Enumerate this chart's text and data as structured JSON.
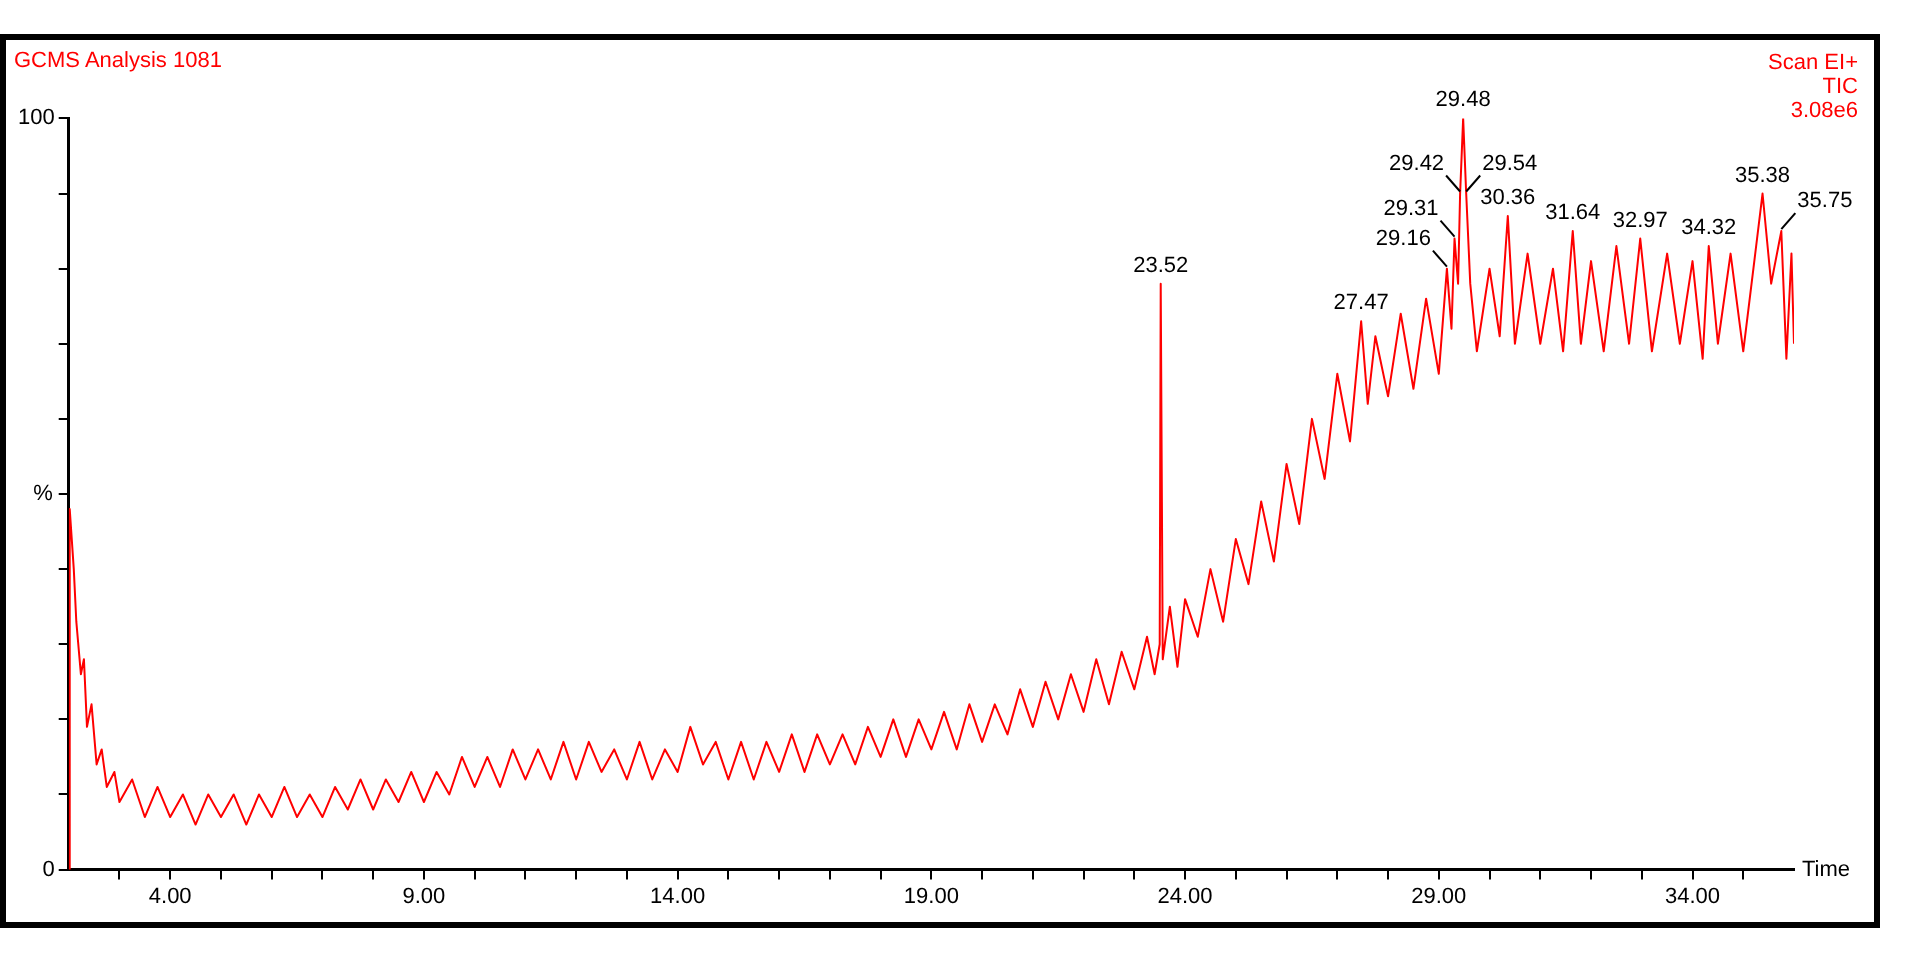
{
  "chart_data": {
    "type": "line",
    "title": "GCMS Analysis 1081",
    "xlabel": "Time",
    "ylabel": "%",
    "annotations": [
      "Scan EI+",
      "TIC",
      "3.08e6",
      {
        "text": "23.52",
        "x": 23.52,
        "y": 78
      },
      {
        "text": "27.47",
        "x": 27.47,
        "y": 73
      },
      {
        "text": "29.48",
        "x": 29.48,
        "y": 100
      },
      {
        "text": "29.16",
        "x": 29.16,
        "y": 80
      },
      {
        "text": "29.31",
        "x": 29.31,
        "y": 84
      },
      {
        "text": "29.42",
        "x": 29.42,
        "y": 90
      },
      {
        "text": "29.54",
        "x": 29.54,
        "y": 90
      },
      {
        "text": "30.36",
        "x": 30.36,
        "y": 87
      },
      {
        "text": "31.64",
        "x": 31.64,
        "y": 85
      },
      {
        "text": "32.97",
        "x": 32.97,
        "y": 84
      },
      {
        "text": "34.32",
        "x": 34.32,
        "y": 83
      },
      {
        "text": "35.38",
        "x": 35.38,
        "y": 90
      },
      {
        "text": "35.75",
        "x": 35.75,
        "y": 85
      }
    ],
    "xlim": [
      2,
      36
    ],
    "xticks": [
      {
        "value": 3,
        "label": null
      },
      {
        "value": 4,
        "label": "4.00"
      },
      {
        "value": 5,
        "label": null
      },
      {
        "value": 6,
        "label": null
      },
      {
        "value": 7,
        "label": null
      },
      {
        "value": 8,
        "label": null
      },
      {
        "value": 9,
        "label": "9.00"
      },
      {
        "value": 10,
        "label": null
      },
      {
        "value": 11,
        "label": null
      },
      {
        "value": 12,
        "label": null
      },
      {
        "value": 13,
        "label": null
      },
      {
        "value": 14,
        "label": "14.00"
      },
      {
        "value": 15,
        "label": null
      },
      {
        "value": 16,
        "label": null
      },
      {
        "value": 17,
        "label": null
      },
      {
        "value": 18,
        "label": null
      },
      {
        "value": 19,
        "label": "19.00"
      },
      {
        "value": 20,
        "label": null
      },
      {
        "value": 21,
        "label": null
      },
      {
        "value": 22,
        "label": null
      },
      {
        "value": 23,
        "label": null
      },
      {
        "value": 24,
        "label": "24.00"
      },
      {
        "value": 25,
        "label": null
      },
      {
        "value": 26,
        "label": null
      },
      {
        "value": 27,
        "label": null
      },
      {
        "value": 28,
        "label": null
      },
      {
        "value": 29,
        "label": "29.00"
      },
      {
        "value": 30,
        "label": null
      },
      {
        "value": 31,
        "label": null
      },
      {
        "value": 32,
        "label": null
      },
      {
        "value": 33,
        "label": null
      },
      {
        "value": 34,
        "label": "34.00"
      },
      {
        "value": 35,
        "label": null
      }
    ],
    "ylim": [
      0,
      100
    ],
    "yticks": [
      0,
      {
        "value": 10,
        "label": null
      },
      {
        "value": 20,
        "label": null
      },
      {
        "value": 30,
        "label": null
      },
      {
        "value": 40,
        "label": null
      },
      {
        "value": 50,
        "label": null
      },
      {
        "value": 60,
        "label": null
      },
      {
        "value": 70,
        "label": null
      },
      {
        "value": 80,
        "label": null
      },
      {
        "value": 90,
        "label": null
      },
      100
    ],
    "grid": false,
    "legend": false,
    "marker": "none",
    "line_style": "solid",
    "series": [
      {
        "color": "#ff0000",
        "x": [
          2.0,
          2.02,
          2.1,
          2.15,
          2.24,
          2.3,
          2.36,
          2.45,
          2.55,
          2.65,
          2.75,
          2.9,
          3.0,
          3.25,
          3.5,
          3.75,
          4.0,
          4.25,
          4.5,
          4.75,
          5.0,
          5.25,
          5.5,
          5.75,
          6.0,
          6.25,
          6.5,
          6.75,
          7.0,
          7.25,
          7.5,
          7.75,
          8.0,
          8.25,
          8.5,
          8.75,
          9.0,
          9.25,
          9.5,
          9.75,
          10.0,
          10.25,
          10.5,
          10.75,
          11.0,
          11.25,
          11.5,
          11.75,
          12.0,
          12.25,
          12.5,
          12.75,
          13.0,
          13.25,
          13.5,
          13.75,
          14.0,
          14.25,
          14.5,
          14.75,
          15.0,
          15.25,
          15.5,
          15.75,
          16.0,
          16.25,
          16.5,
          16.75,
          17.0,
          17.25,
          17.5,
          17.75,
          18.0,
          18.25,
          18.5,
          18.75,
          19.0,
          19.25,
          19.5,
          19.75,
          20.0,
          20.25,
          20.5,
          20.75,
          21.0,
          21.25,
          21.5,
          21.75,
          22.0,
          22.25,
          22.5,
          22.75,
          23.0,
          23.25,
          23.4,
          23.5,
          23.52,
          23.56,
          23.7,
          23.85,
          24.0,
          24.25,
          24.5,
          24.75,
          25.0,
          25.25,
          25.5,
          25.75,
          26.0,
          26.25,
          26.5,
          26.75,
          27.0,
          27.25,
          27.47,
          27.6,
          27.75,
          28.0,
          28.25,
          28.5,
          28.75,
          29.0,
          29.16,
          29.25,
          29.31,
          29.38,
          29.42,
          29.48,
          29.54,
          29.62,
          29.75,
          30.0,
          30.2,
          30.36,
          30.5,
          30.75,
          31.0,
          31.25,
          31.45,
          31.64,
          31.8,
          32.0,
          32.25,
          32.5,
          32.75,
          32.97,
          33.2,
          33.5,
          33.75,
          34.0,
          34.2,
          34.32,
          34.5,
          34.75,
          35.0,
          35.2,
          35.38,
          35.55,
          35.75,
          35.85,
          35.95,
          36.0
        ],
        "values": [
          0,
          48,
          40,
          33,
          26,
          28,
          19,
          22,
          14,
          16,
          11,
          13,
          9,
          12,
          7,
          11,
          7,
          10,
          6,
          10,
          7,
          10,
          6,
          10,
          7,
          11,
          7,
          10,
          7,
          11,
          8,
          12,
          8,
          12,
          9,
          13,
          9,
          13,
          10,
          15,
          11,
          15,
          11,
          16,
          12,
          16,
          12,
          17,
          12,
          17,
          13,
          16,
          12,
          17,
          12,
          16,
          13,
          19,
          14,
          17,
          12,
          17,
          12,
          17,
          13,
          18,
          13,
          18,
          14,
          18,
          14,
          19,
          15,
          20,
          15,
          20,
          16,
          21,
          16,
          22,
          17,
          22,
          18,
          24,
          19,
          25,
          20,
          26,
          21,
          28,
          22,
          29,
          24,
          31,
          26,
          30,
          78,
          28,
          35,
          27,
          36,
          31,
          40,
          33,
          44,
          38,
          49,
          41,
          54,
          46,
          60,
          52,
          66,
          57,
          73,
          62,
          71,
          63,
          74,
          64,
          76,
          66,
          80,
          72,
          84,
          78,
          90,
          100,
          90,
          78,
          69,
          80,
          71,
          87,
          70,
          82,
          70,
          80,
          69,
          85,
          70,
          81,
          69,
          83,
          70,
          84,
          69,
          82,
          70,
          81,
          68,
          83,
          70,
          82,
          69,
          80,
          90,
          78,
          85,
          68,
          82,
          70
        ]
      }
    ]
  }
}
